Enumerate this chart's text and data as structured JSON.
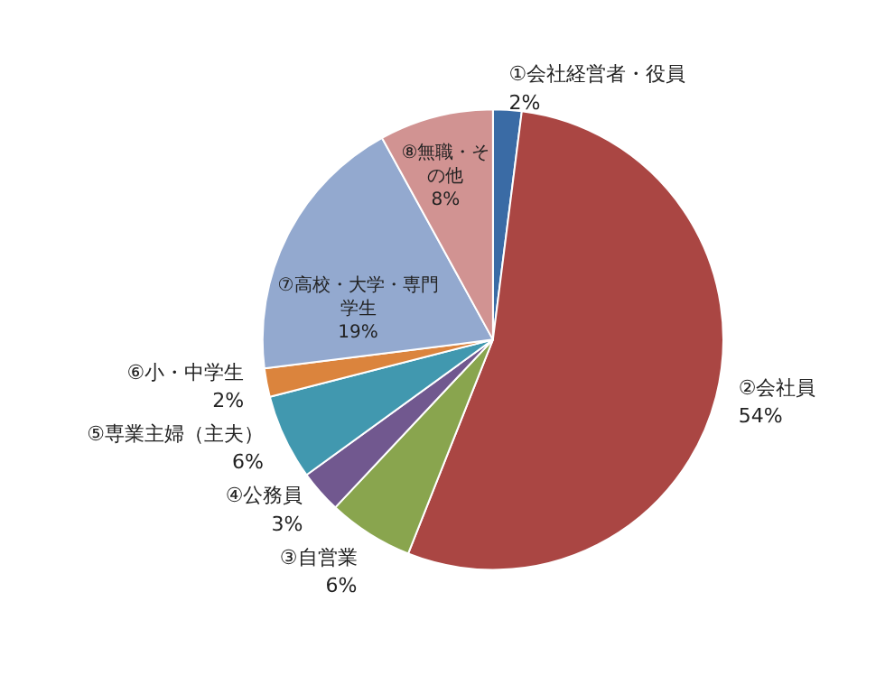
{
  "chart_data": {
    "type": "pie",
    "categories": [
      "①会社経営者・役員",
      "②会社員",
      "③自営業",
      "④公務員",
      "⑤専業主婦（主夫）",
      "⑥小・中学生",
      "⑦高校・大学・専門学生",
      "⑧無職・その他"
    ],
    "values": [
      2,
      54,
      6,
      3,
      6,
      2,
      19,
      8
    ],
    "value_labels": [
      "2%",
      "54%",
      "6%",
      "3%",
      "6%",
      "2%",
      "19%",
      "8%"
    ],
    "colors": [
      "#3a6ba5",
      "#aa4643",
      "#89a54e",
      "#71588f",
      "#4198af",
      "#db843d",
      "#93a9cf",
      "#d19392"
    ]
  }
}
